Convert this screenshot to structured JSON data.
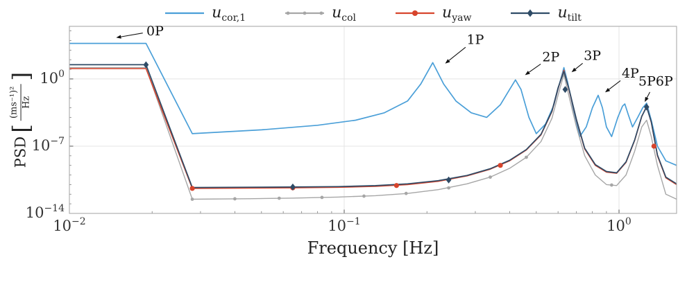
{
  "figure": {
    "background": "#ffffff"
  },
  "chart_data": {
    "type": "line",
    "title": "",
    "xlabel": "Frequency [Hz]",
    "ylabel": "PSD [(ms⁻¹)²/Hz]",
    "ylabel_parts": {
      "prefix": "PSD",
      "open_bracket": "[",
      "numerator": "(ms⁻¹)²",
      "denominator": "Hz",
      "close_bracket": "]"
    },
    "xscale": "log",
    "yscale": "log",
    "xlim": [
      0.01,
      1.62
    ],
    "ylim": [
      1e-14,
      300000.0
    ],
    "grid": true,
    "legend_position": "top",
    "xticks": [
      {
        "value": 0.01,
        "exponent": "−2"
      },
      {
        "value": 0.1,
        "exponent": "−1"
      },
      {
        "value": 1.0,
        "exponent": "0"
      }
    ],
    "yticks": [
      {
        "value": 1.0,
        "exponent": "0"
      },
      {
        "value": 1e-07,
        "exponent": "−7"
      },
      {
        "value": 1e-14,
        "exponent": "−14"
      }
    ],
    "colors": {
      "ucor1": "#4a9fd8",
      "ucol": "#a6a6a6",
      "uyaw": "#d7442c",
      "utilt": "#2e4b66",
      "annotation": "#111111",
      "grid": "#e4e4e4",
      "spine": "#aaaaaa",
      "tick_text": "#333333"
    },
    "series": [
      {
        "id": "ucor1",
        "name": "u_cor,1",
        "label_var": "u",
        "label_sub": "cor,1",
        "color": "#4a9fd8",
        "marker": "none",
        "line_width": 1.7,
        "points": [
          [
            0.01,
            5000
          ],
          [
            0.019,
            5000
          ],
          [
            0.028,
            2e-06
          ],
          [
            0.05,
            5e-06
          ],
          [
            0.08,
            1.5e-05
          ],
          [
            0.11,
            5e-05
          ],
          [
            0.14,
            0.0003
          ],
          [
            0.17,
            0.005
          ],
          [
            0.19,
            0.3
          ],
          [
            0.21,
            50
          ],
          [
            0.23,
            0.3
          ],
          [
            0.255,
            0.005
          ],
          [
            0.29,
            0.0003
          ],
          [
            0.33,
            0.0001
          ],
          [
            0.37,
            0.002
          ],
          [
            0.4,
            0.08
          ],
          [
            0.42,
            0.8
          ],
          [
            0.44,
            0.08
          ],
          [
            0.47,
            0.0001
          ],
          [
            0.5,
            2e-06
          ],
          [
            0.54,
            2e-05
          ],
          [
            0.58,
            0.002
          ],
          [
            0.61,
            0.5
          ],
          [
            0.63,
            15
          ],
          [
            0.65,
            0.5
          ],
          [
            0.68,
            0.001
          ],
          [
            0.72,
            1e-06
          ],
          [
            0.76,
            1e-05
          ],
          [
            0.8,
            0.001
          ],
          [
            0.84,
            0.02
          ],
          [
            0.87,
            0.001
          ],
          [
            0.9,
            1e-05
          ],
          [
            0.94,
            1e-06
          ],
          [
            0.99,
            0.0001
          ],
          [
            1.03,
            0.0015
          ],
          [
            1.05,
            0.0025
          ],
          [
            1.08,
            0.0002
          ],
          [
            1.12,
            1e-05
          ],
          [
            1.17,
            0.0001
          ],
          [
            1.22,
            0.001
          ],
          [
            1.26,
            0.003
          ],
          [
            1.31,
            5e-05
          ],
          [
            1.38,
            1e-07
          ],
          [
            1.48,
            3e-09
          ],
          [
            1.62,
            1e-09
          ]
        ],
        "marker_points": []
      },
      {
        "id": "ucol",
        "name": "u_col",
        "label_var": "u",
        "label_sub": "col",
        "color": "#a6a6a6",
        "marker": "circle-small",
        "line_width": 1.4,
        "points": [
          [
            0.01,
            15
          ],
          [
            0.019,
            15
          ],
          [
            0.028,
            3e-13
          ],
          [
            0.045,
            3.4e-13
          ],
          [
            0.065,
            3.9e-13
          ],
          [
            0.095,
            5e-13
          ],
          [
            0.13,
            7e-13
          ],
          [
            0.17,
            1.2e-12
          ],
          [
            0.22,
            3e-12
          ],
          [
            0.28,
            1.2e-11
          ],
          [
            0.34,
            6e-11
          ],
          [
            0.4,
            5e-10
          ],
          [
            0.46,
            7e-09
          ],
          [
            0.52,
            3e-07
          ],
          [
            0.57,
            8e-05
          ],
          [
            0.6,
            0.02
          ],
          [
            0.63,
            3
          ],
          [
            0.66,
            0.01
          ],
          [
            0.7,
            1e-05
          ],
          [
            0.75,
            1e-08
          ],
          [
            0.82,
            1e-10
          ],
          [
            0.9,
            1e-11
          ],
          [
            0.98,
            8e-12
          ],
          [
            1.06,
            1e-10
          ],
          [
            1.14,
            3e-08
          ],
          [
            1.21,
            1e-05
          ],
          [
            1.26,
            5e-05
          ],
          [
            1.31,
            1e-06
          ],
          [
            1.38,
            1e-09
          ],
          [
            1.48,
            1e-12
          ],
          [
            1.62,
            3e-13
          ]
        ],
        "marker_points": [
          [
            0.028,
            3e-13
          ],
          [
            0.04,
            3.3e-13
          ],
          [
            0.058,
            3.8e-13
          ],
          [
            0.083,
            4.6e-13
          ],
          [
            0.118,
            6.3e-13
          ],
          [
            0.168,
            1.2e-12
          ],
          [
            0.24,
            4.5e-12
          ],
          [
            0.34,
            6e-11
          ],
          [
            0.46,
            7e-09
          ],
          [
            0.94,
            9e-12
          ]
        ]
      },
      {
        "id": "uyaw",
        "name": "u_yaw",
        "label_var": "u",
        "label_sub": "yaw",
        "color": "#d7442c",
        "marker": "circle",
        "line_width": 1.6,
        "points": [
          [
            0.01,
            12
          ],
          [
            0.019,
            12
          ],
          [
            0.028,
            4e-12
          ],
          [
            0.045,
            4.3e-12
          ],
          [
            0.065,
            4.6e-12
          ],
          [
            0.095,
            5.2e-12
          ],
          [
            0.13,
            6.5e-12
          ],
          [
            0.17,
            1e-11
          ],
          [
            0.22,
            2.2e-11
          ],
          [
            0.28,
            8e-11
          ],
          [
            0.34,
            4e-10
          ],
          [
            0.4,
            3e-09
          ],
          [
            0.46,
            4e-08
          ],
          [
            0.52,
            1.5e-06
          ],
          [
            0.57,
            0.0004
          ],
          [
            0.6,
            0.1
          ],
          [
            0.63,
            8
          ],
          [
            0.66,
            0.05
          ],
          [
            0.7,
            5e-05
          ],
          [
            0.75,
            5e-08
          ],
          [
            0.82,
            1e-09
          ],
          [
            0.9,
            2e-10
          ],
          [
            0.98,
            1.5e-10
          ],
          [
            1.06,
            2e-09
          ],
          [
            1.14,
            4e-07
          ],
          [
            1.21,
            0.00012
          ],
          [
            1.26,
            0.0015
          ],
          [
            1.31,
            3e-05
          ],
          [
            1.38,
            1e-08
          ],
          [
            1.48,
            5e-11
          ],
          [
            1.62,
            1e-11
          ]
        ],
        "marker_points": [
          [
            0.028,
            4e-12
          ],
          [
            0.065,
            4.6e-12
          ],
          [
            0.155,
            8e-12
          ],
          [
            0.37,
            1e-09
          ],
          [
            1.34,
            1e-07
          ]
        ]
      },
      {
        "id": "utilt",
        "name": "u_tilt",
        "label_var": "u",
        "label_sub": "tilt",
        "color": "#2e4b66",
        "marker": "diamond",
        "line_width": 1.7,
        "points": [
          [
            0.01,
            30
          ],
          [
            0.019,
            30
          ],
          [
            0.028,
            5e-12
          ],
          [
            0.045,
            5.3e-12
          ],
          [
            0.065,
            5.6e-12
          ],
          [
            0.095,
            6.2e-12
          ],
          [
            0.13,
            7.8e-12
          ],
          [
            0.17,
            1.2e-11
          ],
          [
            0.22,
            2.6e-11
          ],
          [
            0.28,
            9e-11
          ],
          [
            0.34,
            4.5e-10
          ],
          [
            0.4,
            3.4e-09
          ],
          [
            0.46,
            4.5e-08
          ],
          [
            0.52,
            1.7e-06
          ],
          [
            0.57,
            0.00045
          ],
          [
            0.6,
            0.12
          ],
          [
            0.63,
            6
          ],
          [
            0.66,
            0.06
          ],
          [
            0.7,
            6e-05
          ],
          [
            0.75,
            6e-08
          ],
          [
            0.82,
            1.2e-09
          ],
          [
            0.9,
            2.3e-10
          ],
          [
            0.98,
            1.7e-10
          ],
          [
            1.06,
            2.3e-09
          ],
          [
            1.14,
            4.5e-07
          ],
          [
            1.21,
            0.00013
          ],
          [
            1.26,
            0.0012
          ],
          [
            1.31,
            3.5e-05
          ],
          [
            1.38,
            1.2e-08
          ],
          [
            1.48,
            6e-11
          ],
          [
            1.62,
            1.2e-11
          ]
        ],
        "marker_points": [
          [
            0.019,
            30
          ],
          [
            0.065,
            5.6e-12
          ],
          [
            0.24,
            3e-11
          ],
          [
            0.637,
            0.08
          ],
          [
            1.26,
            0.0012
          ]
        ]
      }
    ],
    "annotations": [
      {
        "label": "0P",
        "text": [
          0.0205,
          100000.0
        ],
        "target": [
          0.0148,
          20000.0
        ]
      },
      {
        "label": "1P",
        "text": [
          0.3,
          13000.0
        ],
        "target": [
          0.233,
          40
        ]
      },
      {
        "label": "2P",
        "text": [
          0.565,
          200
        ],
        "target": [
          0.455,
          2.5
        ]
      },
      {
        "label": "3P",
        "text": [
          0.8,
          280
        ],
        "target": [
          0.672,
          5
        ]
      },
      {
        "label": "4P",
        "text": [
          1.1,
          4
        ],
        "target": [
          0.89,
          0.04
        ]
      },
      {
        "label": "5P6P",
        "text": [
          1.36,
          0.6
        ],
        "target": [
          1.24,
          0.004
        ]
      }
    ]
  }
}
